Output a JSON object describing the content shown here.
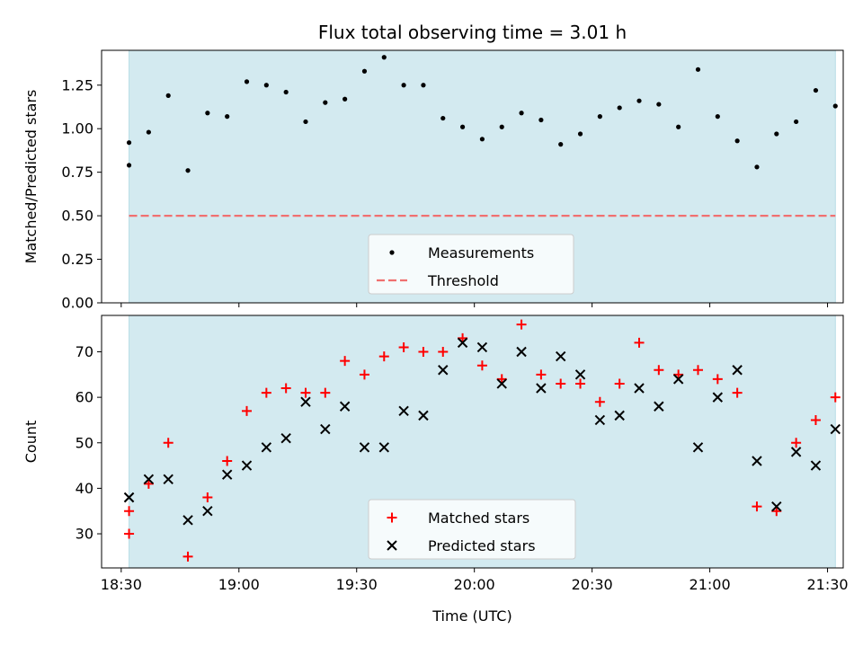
{
  "chart_data": [
    {
      "type": "scatter",
      "title": "Flux total observing time = 3.01 h",
      "ylabel": "Matched/Predicted stars",
      "xlabel": "",
      "xlim": [
        "18:25",
        "21:34"
      ],
      "ylim": [
        0,
        1.45
      ],
      "yticks": [
        "0.00",
        "0.25",
        "0.50",
        "0.75",
        "1.00",
        "1.25"
      ],
      "legend_position": "bottom-center",
      "shaded_span": [
        "18:32",
        "21:32"
      ],
      "series": [
        {
          "name": "Measurements",
          "marker": "dot",
          "color": "#000000",
          "points": [
            [
              "18:32",
              0.92
            ],
            [
              "18:32",
              0.79
            ],
            [
              "18:37",
              0.98
            ],
            [
              "18:42",
              1.19
            ],
            [
              "18:47",
              0.76
            ],
            [
              "18:52",
              1.09
            ],
            [
              "18:57",
              1.07
            ],
            [
              "19:02",
              1.27
            ],
            [
              "19:07",
              1.25
            ],
            [
              "19:12",
              1.21
            ],
            [
              "19:17",
              1.04
            ],
            [
              "19:22",
              1.15
            ],
            [
              "19:27",
              1.17
            ],
            [
              "19:32",
              1.33
            ],
            [
              "19:37",
              1.41
            ],
            [
              "19:42",
              1.25
            ],
            [
              "19:47",
              1.25
            ],
            [
              "19:52",
              1.06
            ],
            [
              "19:57",
              1.01
            ],
            [
              "20:02",
              0.94
            ],
            [
              "20:07",
              1.01
            ],
            [
              "20:12",
              1.09
            ],
            [
              "20:17",
              1.05
            ],
            [
              "20:22",
              0.91
            ],
            [
              "20:27",
              0.97
            ],
            [
              "20:32",
              1.07
            ],
            [
              "20:37",
              1.12
            ],
            [
              "20:42",
              1.16
            ],
            [
              "20:47",
              1.14
            ],
            [
              "20:52",
              1.01
            ],
            [
              "20:57",
              1.34
            ],
            [
              "21:02",
              1.07
            ],
            [
              "21:07",
              0.93
            ],
            [
              "21:12",
              0.78
            ],
            [
              "21:17",
              0.97
            ],
            [
              "21:22",
              1.04
            ],
            [
              "21:27",
              1.22
            ],
            [
              "21:32",
              1.13
            ]
          ]
        },
        {
          "name": "Threshold",
          "marker": "dashed-line",
          "color": "#f07070",
          "points": [
            [
              "18:32",
              0.5
            ],
            [
              "21:32",
              0.5
            ]
          ]
        }
      ]
    },
    {
      "type": "scatter",
      "title": "",
      "ylabel": "Count",
      "xlabel": "Time (UTC)",
      "xlim": [
        "18:25",
        "21:34"
      ],
      "ylim": [
        22.5,
        78
      ],
      "yticks": [
        "30",
        "40",
        "50",
        "60",
        "70"
      ],
      "xticks": [
        "18:30",
        "19:00",
        "19:30",
        "20:00",
        "20:30",
        "21:00",
        "21:30"
      ],
      "legend_position": "bottom-center",
      "shaded_span": [
        "18:32",
        "21:32"
      ],
      "series": [
        {
          "name": "Matched stars",
          "marker": "plus",
          "color": "#ff0000",
          "points": [
            [
              "18:32",
              35
            ],
            [
              "18:32",
              30
            ],
            [
              "18:37",
              41
            ],
            [
              "18:42",
              50
            ],
            [
              "18:47",
              25
            ],
            [
              "18:52",
              38
            ],
            [
              "18:57",
              46
            ],
            [
              "19:02",
              57
            ],
            [
              "19:07",
              61
            ],
            [
              "19:12",
              62
            ],
            [
              "19:17",
              61
            ],
            [
              "19:22",
              61
            ],
            [
              "19:27",
              68
            ],
            [
              "19:32",
              65
            ],
            [
              "19:37",
              69
            ],
            [
              "19:42",
              71
            ],
            [
              "19:47",
              70
            ],
            [
              "19:52",
              70
            ],
            [
              "19:57",
              73
            ],
            [
              "20:02",
              67
            ],
            [
              "20:07",
              64
            ],
            [
              "20:12",
              76
            ],
            [
              "20:17",
              65
            ],
            [
              "20:22",
              63
            ],
            [
              "20:27",
              63
            ],
            [
              "20:32",
              59
            ],
            [
              "20:37",
              63
            ],
            [
              "20:42",
              72
            ],
            [
              "20:47",
              66
            ],
            [
              "20:52",
              65
            ],
            [
              "20:57",
              66
            ],
            [
              "21:02",
              64
            ],
            [
              "21:07",
              61
            ],
            [
              "21:12",
              36
            ],
            [
              "21:17",
              35
            ],
            [
              "21:22",
              50
            ],
            [
              "21:27",
              55
            ],
            [
              "21:32",
              60
            ]
          ]
        },
        {
          "name": "Predicted stars",
          "marker": "x",
          "color": "#000000",
          "points": [
            [
              "18:32",
              38
            ],
            [
              "18:32",
              38
            ],
            [
              "18:37",
              42
            ],
            [
              "18:42",
              42
            ],
            [
              "18:47",
              33
            ],
            [
              "18:52",
              35
            ],
            [
              "18:57",
              43
            ],
            [
              "19:02",
              45
            ],
            [
              "19:07",
              49
            ],
            [
              "19:12",
              51
            ],
            [
              "19:17",
              59
            ],
            [
              "19:22",
              53
            ],
            [
              "19:27",
              58
            ],
            [
              "19:32",
              49
            ],
            [
              "19:37",
              49
            ],
            [
              "19:42",
              57
            ],
            [
              "19:47",
              56
            ],
            [
              "19:52",
              66
            ],
            [
              "19:57",
              72
            ],
            [
              "20:02",
              71
            ],
            [
              "20:07",
              63
            ],
            [
              "20:12",
              70
            ],
            [
              "20:17",
              62
            ],
            [
              "20:22",
              69
            ],
            [
              "20:27",
              65
            ],
            [
              "20:32",
              55
            ],
            [
              "20:37",
              56
            ],
            [
              "20:42",
              62
            ],
            [
              "20:47",
              58
            ],
            [
              "20:52",
              64
            ],
            [
              "20:57",
              49
            ],
            [
              "21:02",
              60
            ],
            [
              "21:07",
              66
            ],
            [
              "21:12",
              46
            ],
            [
              "21:17",
              36
            ],
            [
              "21:22",
              48
            ],
            [
              "21:27",
              45
            ],
            [
              "21:32",
              53
            ]
          ]
        }
      ]
    }
  ],
  "colors": {
    "shade": "#d3eaf0",
    "shade_edge": "#b8dde6"
  }
}
